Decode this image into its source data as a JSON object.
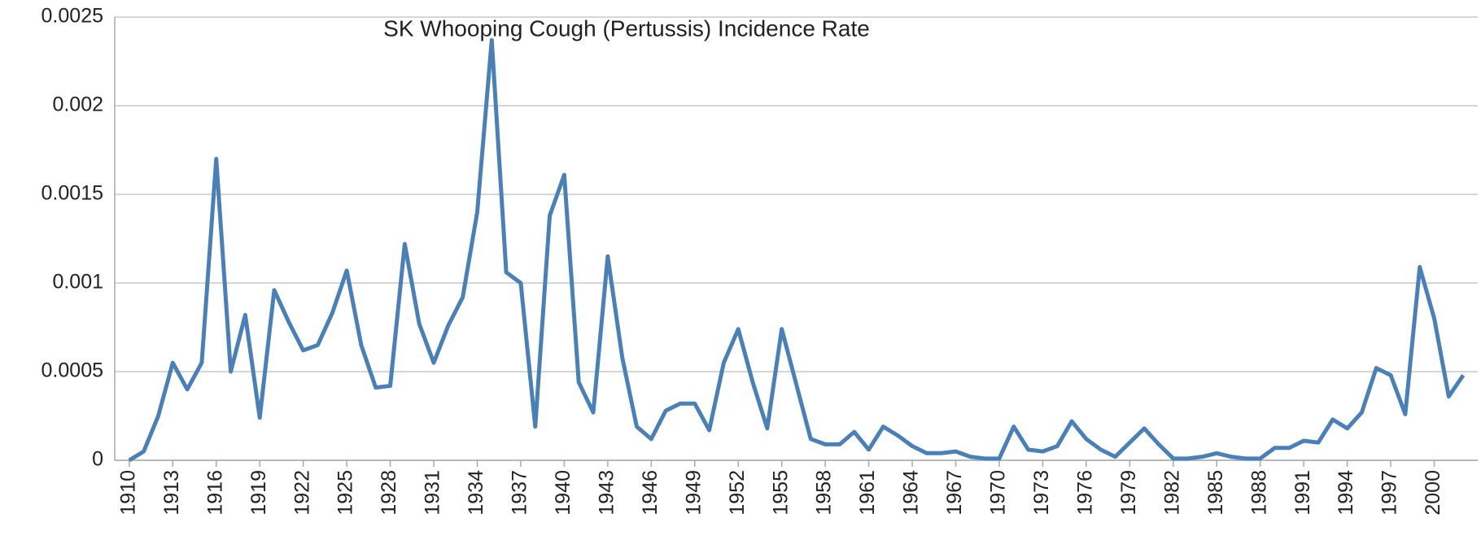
{
  "chart_data": {
    "type": "line",
    "title": "SK Whooping Cough (Pertussis) Incidence Rate",
    "x": [
      1910,
      1911,
      1912,
      1913,
      1914,
      1915,
      1916,
      1917,
      1918,
      1919,
      1920,
      1921,
      1922,
      1923,
      1924,
      1925,
      1926,
      1927,
      1928,
      1929,
      1930,
      1931,
      1932,
      1933,
      1934,
      1935,
      1936,
      1937,
      1938,
      1939,
      1940,
      1941,
      1942,
      1943,
      1944,
      1945,
      1946,
      1947,
      1948,
      1949,
      1950,
      1951,
      1952,
      1953,
      1954,
      1955,
      1956,
      1957,
      1958,
      1959,
      1960,
      1961,
      1962,
      1963,
      1964,
      1965,
      1966,
      1967,
      1968,
      1969,
      1970,
      1971,
      1972,
      1973,
      1974,
      1975,
      1976,
      1977,
      1978,
      1979,
      1980,
      1981,
      1982,
      1983,
      1984,
      1985,
      1986,
      1987,
      1988,
      1989,
      1990,
      1991,
      1992,
      1993,
      1994,
      1995,
      1996,
      1997,
      1998,
      1999,
      2000,
      2001,
      2002
    ],
    "series": [
      {
        "name": "Incidence Rate",
        "color": "#4a80b8",
        "values": [
          0,
          5e-05,
          0.00025,
          0.00055,
          0.0004,
          0.00055,
          0.0017,
          0.0005,
          0.00082,
          0.00024,
          0.00096,
          0.00078,
          0.00062,
          0.00065,
          0.00083,
          0.00107,
          0.00065,
          0.00041,
          0.00042,
          0.00122,
          0.00077,
          0.00055,
          0.00076,
          0.00092,
          0.0014,
          0.00237,
          0.00106,
          0.001,
          0.00019,
          0.00138,
          0.00161,
          0.00044,
          0.00027,
          0.00115,
          0.00058,
          0.00019,
          0.00012,
          0.00028,
          0.00032,
          0.00032,
          0.00017,
          0.00055,
          0.00074,
          0.00044,
          0.00018,
          0.00074,
          0.00043,
          0.00012,
          9e-05,
          9e-05,
          0.00016,
          6e-05,
          0.00019,
          0.00014,
          8e-05,
          4e-05,
          4e-05,
          5e-05,
          2e-05,
          1e-05,
          1e-05,
          0.00019,
          6e-05,
          5e-05,
          8e-05,
          0.00022,
          0.00012,
          6e-05,
          2e-05,
          0.0001,
          0.00018,
          9e-05,
          1e-05,
          1e-05,
          2e-05,
          4e-05,
          2e-05,
          1e-05,
          1e-05,
          7e-05,
          7e-05,
          0.00011,
          0.0001,
          0.00023,
          0.00018,
          0.00027,
          0.00052,
          0.00048,
          0.00026,
          0.00109,
          0.0008,
          0.00036,
          0.00048
        ]
      }
    ],
    "xlim": [
      1909,
      2003
    ],
    "xticks": [
      1910,
      1913,
      1916,
      1919,
      1922,
      1925,
      1928,
      1931,
      1934,
      1937,
      1940,
      1943,
      1946,
      1949,
      1952,
      1955,
      1958,
      1961,
      1964,
      1967,
      1970,
      1973,
      1976,
      1979,
      1982,
      1985,
      1988,
      1991,
      1994,
      1997,
      2000
    ],
    "ylim": [
      0,
      0.0025
    ],
    "yticks": [
      0,
      0.0005,
      0.001,
      0.0015,
      0.002,
      0.0025
    ],
    "grid": true
  }
}
